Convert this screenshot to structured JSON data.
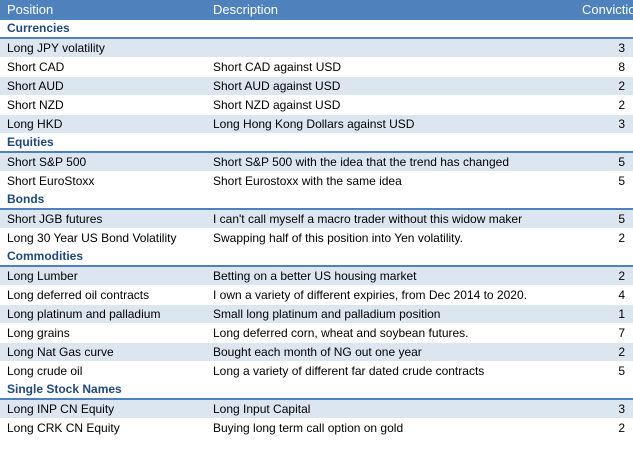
{
  "table": {
    "headers": {
      "position": "Position",
      "description": "Description",
      "conviction": "Conviction"
    },
    "sections": [
      {
        "title": "Currencies",
        "rows": [
          {
            "position": "Long JPY volatility",
            "description": "",
            "conviction": "3"
          },
          {
            "position": "Short CAD",
            "description": "Short CAD against USD",
            "conviction": "8"
          },
          {
            "position": "Short AUD",
            "description": "Short AUD against USD",
            "conviction": "2"
          },
          {
            "position": "Short NZD",
            "description": "Short NZD against USD",
            "conviction": "2"
          },
          {
            "position": "Long HKD",
            "description": "Long Hong Kong Dollars against USD",
            "conviction": "3"
          }
        ]
      },
      {
        "title": "Equities",
        "rows": [
          {
            "position": "Short S&P 500",
            "description": "Short S&P 500 with the idea that the trend has changed",
            "conviction": "5"
          },
          {
            "position": "Short EuroStoxx",
            "description": "Short Eurostoxx with the same idea",
            "conviction": "5"
          }
        ]
      },
      {
        "title": "Bonds",
        "rows": [
          {
            "position": "Short JGB futures",
            "description": "I can't call myself a macro trader without this widow maker",
            "conviction": "5"
          },
          {
            "position": "Long 30 Year US Bond Volatility",
            "description": "Swapping half of this position into Yen volatility.",
            "conviction": "2"
          }
        ]
      },
      {
        "title": "Commodities",
        "rows": [
          {
            "position": "Long Lumber",
            "description": "Betting on a better US housing market",
            "conviction": "2"
          },
          {
            "position": "Long deferred oil contracts",
            "description": "I own a variety of different expiries, from Dec 2014 to 2020.",
            "conviction": "4"
          },
          {
            "position": "Long platinum and palladium",
            "description": "Small long platinum and palladium position",
            "conviction": "1"
          },
          {
            "position": "Long grains",
            "description": "Long deferred corn, wheat and soybean futures.",
            "conviction": "7"
          },
          {
            "position": "Long Nat Gas curve",
            "description": "Bought each month of NG out one year",
            "conviction": "2"
          },
          {
            "position": "Long crude oil",
            "description": "Long a variety of different far dated crude contracts",
            "conviction": "5"
          }
        ]
      },
      {
        "title": "Single Stock Names",
        "rows": [
          {
            "position": "Long INP CN Equity",
            "description": "Long Input Capital",
            "conviction": "3"
          },
          {
            "position": "Long CRK CN Equity",
            "description": "Buying long term call option on gold",
            "conviction": "2"
          }
        ]
      }
    ]
  },
  "colors": {
    "header_bg": "#4f81bd",
    "section_text": "#1f497d",
    "band_fill": "#dce6f1"
  }
}
